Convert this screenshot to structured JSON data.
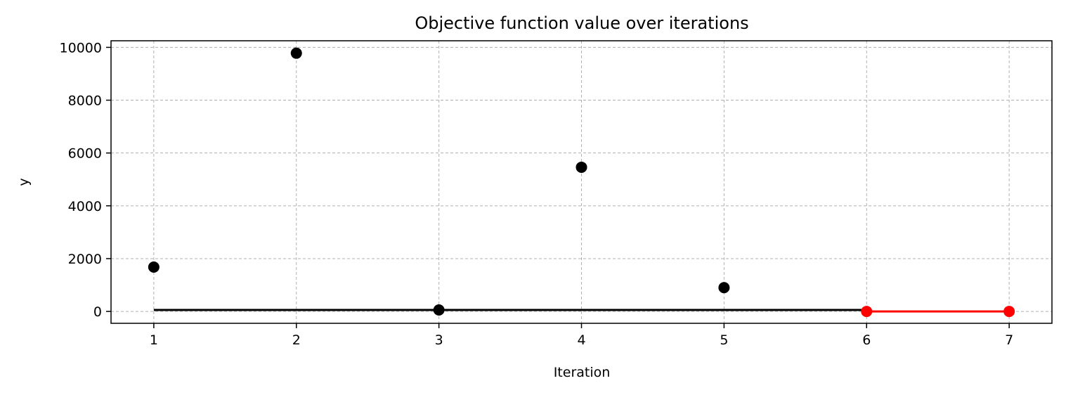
{
  "chart_data": {
    "type": "scatter",
    "title": "Objective function value over iterations",
    "xlabel": "Iteration",
    "ylabel": "y",
    "xlim": [
      0.7,
      7.3
    ],
    "ylim": [
      -450,
      10250
    ],
    "x_ticks": [
      1,
      2,
      3,
      4,
      5,
      6,
      7
    ],
    "y_ticks": [
      0,
      2000,
      4000,
      6000,
      8000,
      10000
    ],
    "grid": true,
    "series": [
      {
        "color": "#000000",
        "marker": "circle",
        "line": false,
        "points": [
          {
            "x": 1,
            "y": 1680
          },
          {
            "x": 2,
            "y": 9780
          },
          {
            "x": 3,
            "y": 55
          },
          {
            "x": 4,
            "y": 5460
          },
          {
            "x": 5,
            "y": 900
          }
        ]
      },
      {
        "color": "#000000",
        "marker": "none",
        "line": true,
        "points": [
          {
            "x": 1,
            "y": 55
          },
          {
            "x": 6,
            "y": 55
          }
        ]
      },
      {
        "color": "#ff0000",
        "marker": "circle",
        "line": true,
        "points": [
          {
            "x": 6,
            "y": 0
          },
          {
            "x": 7,
            "y": 0
          }
        ]
      }
    ]
  }
}
